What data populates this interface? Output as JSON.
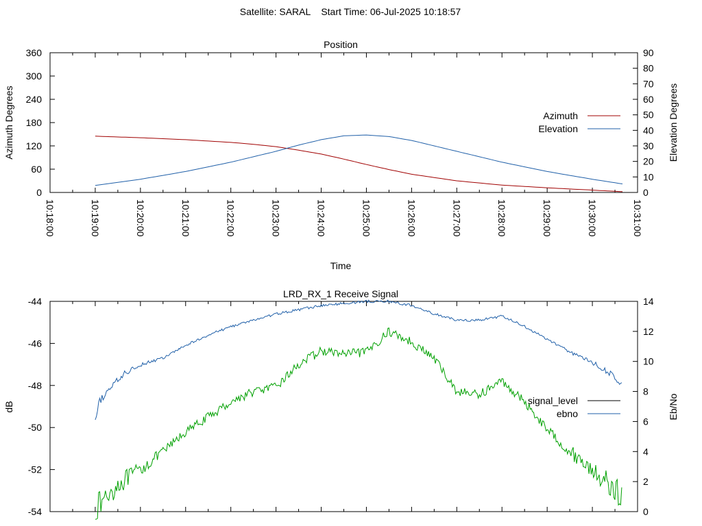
{
  "header": {
    "title": "Satellite: SARAL    Start Time: 06-Jul-2025 10:18:57"
  },
  "colors": {
    "azimuth": "#a00000",
    "elevation": "#1f5fa8",
    "signal_level": "#00a000",
    "ebno": "#1f5fa8",
    "signal_legend_swatch": "#000000"
  },
  "chart_data": [
    {
      "type": "line",
      "title": "Position",
      "xlabel": "Time",
      "ylabel": "Azimuth Degrees",
      "y2label": "Elevation Degrees",
      "xlim": [
        "10:18:00",
        "10:31:00"
      ],
      "ylim": [
        0,
        360
      ],
      "y2lim": [
        0,
        90
      ],
      "yticks": [
        0,
        60,
        120,
        180,
        240,
        300,
        360
      ],
      "y2ticks": [
        0,
        10,
        20,
        30,
        40,
        50,
        60,
        70,
        80,
        90
      ],
      "xticks": [
        "10:18:00",
        "10:19:00",
        "10:20:00",
        "10:21:00",
        "10:22:00",
        "10:23:00",
        "10:24:00",
        "10:25:00",
        "10:26:00",
        "10:27:00",
        "10:28:00",
        "10:29:00",
        "10:30:00",
        "10:31:00"
      ],
      "legend_position": "right",
      "series": [
        {
          "name": "Azimuth",
          "axis": "left",
          "x": [
            "10:19:00",
            "10:20:00",
            "10:21:00",
            "10:22:00",
            "10:22:30",
            "10:23:00",
            "10:23:30",
            "10:24:00",
            "10:24:30",
            "10:25:00",
            "10:25:30",
            "10:26:00",
            "10:27:00",
            "10:28:00",
            "10:29:00",
            "10:30:00",
            "10:30:40"
          ],
          "y": [
            145,
            141,
            136,
            129,
            124,
            118,
            109,
            99,
            86,
            72,
            59,
            47,
            30,
            19,
            12,
            6,
            2
          ]
        },
        {
          "name": "Elevation",
          "axis": "right",
          "x": [
            "10:19:00",
            "10:20:00",
            "10:21:00",
            "10:22:00",
            "10:23:00",
            "10:23:30",
            "10:24:00",
            "10:24:30",
            "10:25:00",
            "10:25:30",
            "10:26:00",
            "10:27:00",
            "10:28:00",
            "10:29:00",
            "10:30:00",
            "10:30:40"
          ],
          "y": [
            4.5,
            8.5,
            13.5,
            19.5,
            26.5,
            30.5,
            34,
            36.5,
            37,
            36,
            33.5,
            26.5,
            19.5,
            13.5,
            8.5,
            5.5
          ]
        }
      ]
    },
    {
      "type": "line",
      "title": "LRD_RX_1 Receive Signal",
      "xlabel": "",
      "ylabel": "dB",
      "y2label": "Eb/No",
      "xlim": [
        "10:18:00",
        "10:31:00"
      ],
      "ylim": [
        -54,
        -44
      ],
      "y2lim": [
        0,
        14
      ],
      "yticks": [
        -54,
        -52,
        -50,
        -48,
        -46,
        -44
      ],
      "y2ticks": [
        0,
        2,
        4,
        6,
        8,
        10,
        12,
        14
      ],
      "legend_position": "right",
      "series": [
        {
          "name": "signal_level",
          "axis": "right",
          "x": [
            "10:19:00",
            "10:19:30",
            "10:20:00",
            "10:20:30",
            "10:21:00",
            "10:21:30",
            "10:22:00",
            "10:22:30",
            "10:23:00",
            "10:23:30",
            "10:24:00",
            "10:24:30",
            "10:25:00",
            "10:25:30",
            "10:26:00",
            "10:26:30",
            "10:27:00",
            "10:27:30",
            "10:28:00",
            "10:28:30",
            "10:29:00",
            "10:29:30",
            "10:30:00",
            "10:30:30",
            "10:30:40"
          ],
          "y": [
            0.2,
            1.8,
            2.8,
            4.0,
            5.3,
            6.3,
            7.3,
            8.0,
            8.3,
            9.8,
            10.7,
            10.5,
            10.6,
            12.0,
            11.3,
            10.2,
            8.0,
            7.8,
            8.7,
            7.3,
            5.5,
            4.0,
            2.8,
            1.5,
            0.8
          ]
        },
        {
          "name": "ebno",
          "axis": "left",
          "x": [
            "10:19:00",
            "10:19:05",
            "10:19:20",
            "10:19:40",
            "10:20:00",
            "10:20:30",
            "10:21:00",
            "10:21:30",
            "10:22:00",
            "10:22:30",
            "10:23:00",
            "10:23:30",
            "10:24:00",
            "10:24:30",
            "10:25:00",
            "10:25:30",
            "10:26:00",
            "10:26:30",
            "10:27:00",
            "10:27:30",
            "10:28:00",
            "10:28:30",
            "10:29:00",
            "10:29:30",
            "10:30:00",
            "10:30:30",
            "10:30:40"
          ],
          "y": [
            -49.8,
            -48.8,
            -48.1,
            -47.4,
            -47.0,
            -46.7,
            -46.1,
            -45.6,
            -45.2,
            -44.9,
            -44.6,
            -44.4,
            -44.2,
            -44.1,
            -44.0,
            -44.0,
            -44.2,
            -44.6,
            -44.9,
            -44.9,
            -44.7,
            -45.2,
            -45.8,
            -46.4,
            -46.9,
            -47.6,
            -48.0
          ]
        }
      ]
    }
  ]
}
